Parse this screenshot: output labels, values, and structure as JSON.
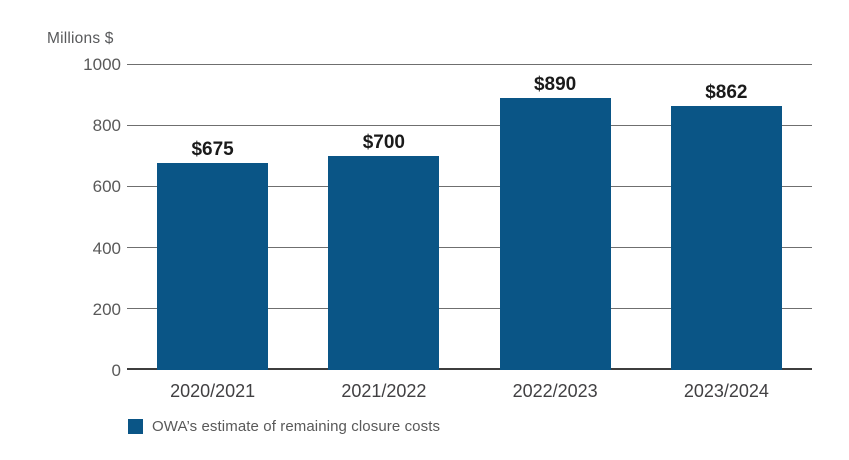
{
  "chart": {
    "axis_title": "Millions $",
    "legend": {
      "label": "OWA’s estimate of remaining closure costs"
    }
  },
  "chart_data": {
    "type": "bar",
    "categories": [
      "2020/2021",
      "2021/2022",
      "2022/2023",
      "2023/2024"
    ],
    "values": [
      675,
      700,
      890,
      862
    ],
    "value_labels": [
      "$675",
      "$700",
      "$890",
      "$862"
    ],
    "title": "",
    "xlabel": "",
    "ylabel": "Millions $",
    "ylim": [
      0,
      1000
    ],
    "y_ticks": [
      0,
      200,
      400,
      600,
      800,
      1000
    ],
    "grid": "horizontal",
    "legend_entries": [
      "OWA’s estimate of remaining closure costs"
    ],
    "legend_position": "bottom-left",
    "colors": {
      "bar": "#0a5586",
      "gridline": "#6f6f6f",
      "baseline": "#3d3d3d",
      "y_tick_label": "#595959",
      "x_tick_label": "#414042",
      "value_label": "#1a1a1a",
      "axis_title": "#58595b",
      "background": "#ffffff"
    }
  }
}
